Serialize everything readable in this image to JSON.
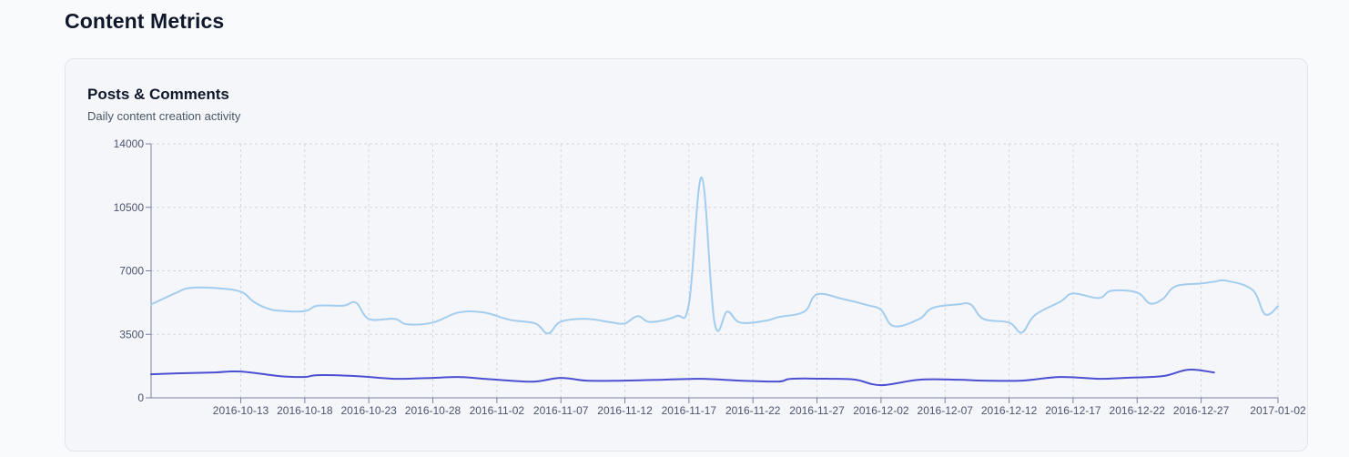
{
  "page": {
    "title": "Content Metrics"
  },
  "card": {
    "title": "Posts & Comments",
    "subtitle": "Daily content creation activity"
  },
  "colors": {
    "light_series": "#a3cdee",
    "dark_series": "#4b4fd2",
    "grid": "#d4d7e0",
    "axis": "#7b7fa5"
  },
  "chart_data": {
    "type": "line",
    "x_start": "2016-10-06",
    "x_end": "2017-01-02",
    "ylim": [
      0,
      14000
    ],
    "yticks": [
      0,
      3500,
      7000,
      10500,
      14000
    ],
    "xticks": [
      "2016-10-13",
      "2016-10-18",
      "2016-10-23",
      "2016-10-28",
      "2016-11-02",
      "2016-11-07",
      "2016-11-12",
      "2016-11-17",
      "2016-11-22",
      "2016-11-27",
      "2016-12-02",
      "2016-12-07",
      "2016-12-12",
      "2016-12-17",
      "2016-12-22",
      "2016-12-27",
      "2017-01-02"
    ],
    "grid": true,
    "legend": "none",
    "series": [
      {
        "color_key": "light_series",
        "points": [
          [
            "2016-10-06",
            5150
          ],
          [
            "2016-10-08",
            5800
          ],
          [
            "2016-10-09",
            6050
          ],
          [
            "2016-10-11",
            6050
          ],
          [
            "2016-10-13",
            5850
          ],
          [
            "2016-10-14",
            5300
          ],
          [
            "2016-10-15",
            4950
          ],
          [
            "2016-10-16",
            4800
          ],
          [
            "2016-10-18",
            4780
          ],
          [
            "2016-10-19",
            5080
          ],
          [
            "2016-10-21",
            5080
          ],
          [
            "2016-10-22",
            5250
          ],
          [
            "2016-10-23",
            4350
          ],
          [
            "2016-10-25",
            4350
          ],
          [
            "2016-10-26",
            4050
          ],
          [
            "2016-10-28",
            4150
          ],
          [
            "2016-10-30",
            4700
          ],
          [
            "2016-11-01",
            4700
          ],
          [
            "2016-11-03",
            4300
          ],
          [
            "2016-11-05",
            4100
          ],
          [
            "2016-11-06",
            3550
          ],
          [
            "2016-11-07",
            4200
          ],
          [
            "2016-11-09",
            4350
          ],
          [
            "2016-11-11",
            4150
          ],
          [
            "2016-11-12",
            4100
          ],
          [
            "2016-11-13",
            4500
          ],
          [
            "2016-11-14",
            4180
          ],
          [
            "2016-11-16",
            4500
          ],
          [
            "2016-11-17",
            5200
          ],
          [
            "2016-11-18",
            12150
          ],
          [
            "2016-11-19",
            4150
          ],
          [
            "2016-11-20",
            4750
          ],
          [
            "2016-11-21",
            4150
          ],
          [
            "2016-11-23",
            4250
          ],
          [
            "2016-11-24",
            4450
          ],
          [
            "2016-11-26",
            4750
          ],
          [
            "2016-11-27",
            5700
          ],
          [
            "2016-11-29",
            5450
          ],
          [
            "2016-12-01",
            5100
          ],
          [
            "2016-12-02",
            4850
          ],
          [
            "2016-12-03",
            3950
          ],
          [
            "2016-12-05",
            4350
          ],
          [
            "2016-12-06",
            4950
          ],
          [
            "2016-12-08",
            5150
          ],
          [
            "2016-12-09",
            5150
          ],
          [
            "2016-12-10",
            4350
          ],
          [
            "2016-12-12",
            4150
          ],
          [
            "2016-12-13",
            3600
          ],
          [
            "2016-12-14",
            4550
          ],
          [
            "2016-12-16",
            5300
          ],
          [
            "2016-12-17",
            5750
          ],
          [
            "2016-12-19",
            5500
          ],
          [
            "2016-12-20",
            5900
          ],
          [
            "2016-12-22",
            5800
          ],
          [
            "2016-12-23",
            5200
          ],
          [
            "2016-12-24",
            5450
          ],
          [
            "2016-12-25",
            6150
          ],
          [
            "2016-12-27",
            6300
          ],
          [
            "2016-12-28",
            6400
          ],
          [
            "2016-12-29",
            6450
          ],
          [
            "2016-12-31",
            5950
          ],
          [
            "2017-01-01",
            4600
          ],
          [
            "2017-01-02",
            5050
          ]
        ]
      },
      {
        "color_key": "dark_series",
        "points": [
          [
            "2016-10-06",
            1300
          ],
          [
            "2016-10-08",
            1350
          ],
          [
            "2016-10-11",
            1400
          ],
          [
            "2016-10-13",
            1450
          ],
          [
            "2016-10-16",
            1200
          ],
          [
            "2016-10-18",
            1150
          ],
          [
            "2016-10-19",
            1250
          ],
          [
            "2016-10-22",
            1200
          ],
          [
            "2016-10-25",
            1050
          ],
          [
            "2016-10-28",
            1100
          ],
          [
            "2016-10-30",
            1150
          ],
          [
            "2016-11-01",
            1050
          ],
          [
            "2016-11-03",
            950
          ],
          [
            "2016-11-05",
            900
          ],
          [
            "2016-11-07",
            1100
          ],
          [
            "2016-11-09",
            950
          ],
          [
            "2016-11-12",
            950
          ],
          [
            "2016-11-15",
            1000
          ],
          [
            "2016-11-18",
            1050
          ],
          [
            "2016-11-21",
            950
          ],
          [
            "2016-11-24",
            900
          ],
          [
            "2016-11-25",
            1050
          ],
          [
            "2016-11-28",
            1050
          ],
          [
            "2016-11-30",
            1000
          ],
          [
            "2016-12-02",
            700
          ],
          [
            "2016-12-05",
            1000
          ],
          [
            "2016-12-08",
            1000
          ],
          [
            "2016-12-10",
            950
          ],
          [
            "2016-12-13",
            950
          ],
          [
            "2016-12-16",
            1150
          ],
          [
            "2016-12-19",
            1050
          ],
          [
            "2016-12-21",
            1100
          ],
          [
            "2016-12-24",
            1200
          ],
          [
            "2016-12-26",
            1550
          ],
          [
            "2016-12-28",
            1400
          ]
        ]
      }
    ]
  }
}
